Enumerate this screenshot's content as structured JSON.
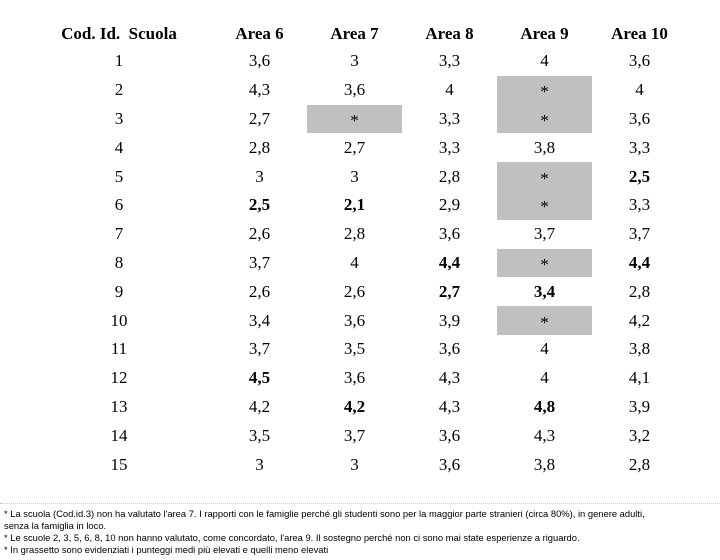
{
  "table": {
    "header": {
      "id_column": "Cod. Id.  Scuola",
      "area_columns": [
        "Area 6",
        "Area 7",
        "Area 8",
        "Area 9",
        "Area 10"
      ]
    },
    "not_evaluated_marker": "*",
    "rows": [
      {
        "id": "1",
        "cells": [
          {
            "v": "3,6"
          },
          {
            "v": "3"
          },
          {
            "v": "3,3"
          },
          {
            "v": "4"
          },
          {
            "v": "3,6"
          }
        ]
      },
      {
        "id": "2",
        "cells": [
          {
            "v": "4,3"
          },
          {
            "v": "3,6"
          },
          {
            "v": "4"
          },
          {
            "v": "*",
            "gray": true
          },
          {
            "v": "4"
          }
        ]
      },
      {
        "id": "3",
        "cells": [
          {
            "v": "2,7"
          },
          {
            "v": "*",
            "gray": true
          },
          {
            "v": "3,3"
          },
          {
            "v": "*",
            "gray": true
          },
          {
            "v": "3,6"
          }
        ]
      },
      {
        "id": "4",
        "cells": [
          {
            "v": "2,8"
          },
          {
            "v": "2,7"
          },
          {
            "v": "3,3"
          },
          {
            "v": "3,8"
          },
          {
            "v": "3,3"
          }
        ]
      },
      {
        "id": "5",
        "cells": [
          {
            "v": "3"
          },
          {
            "v": "3"
          },
          {
            "v": "2,8"
          },
          {
            "v": "*",
            "gray": true
          },
          {
            "v": "2,5",
            "bold": true
          }
        ]
      },
      {
        "id": "6",
        "cells": [
          {
            "v": "2,5",
            "bold": true
          },
          {
            "v": "2,1",
            "bold": true
          },
          {
            "v": "2,9"
          },
          {
            "v": "*",
            "gray": true
          },
          {
            "v": "3,3"
          }
        ]
      },
      {
        "id": "7",
        "cells": [
          {
            "v": "2,6"
          },
          {
            "v": "2,8"
          },
          {
            "v": "3,6"
          },
          {
            "v": "3,7"
          },
          {
            "v": "3,7"
          }
        ]
      },
      {
        "id": "8",
        "cells": [
          {
            "v": "3,7"
          },
          {
            "v": "4"
          },
          {
            "v": "4,4",
            "bold": true
          },
          {
            "v": "*",
            "gray": true
          },
          {
            "v": "4,4",
            "bold": true
          }
        ]
      },
      {
        "id": "9",
        "cells": [
          {
            "v": "2,6"
          },
          {
            "v": "2,6"
          },
          {
            "v": "2,7",
            "bold": true
          },
          {
            "v": "3,4",
            "bold": true
          },
          {
            "v": "2,8"
          }
        ]
      },
      {
        "id": "10",
        "cells": [
          {
            "v": "3,4"
          },
          {
            "v": "3,6"
          },
          {
            "v": "3,9"
          },
          {
            "v": "*",
            "gray": true
          },
          {
            "v": "4,2"
          }
        ]
      },
      {
        "id": "11",
        "cells": [
          {
            "v": "3,7"
          },
          {
            "v": "3,5"
          },
          {
            "v": "3,6"
          },
          {
            "v": "4"
          },
          {
            "v": "3,8"
          }
        ]
      },
      {
        "id": "12",
        "cells": [
          {
            "v": "4,5",
            "bold": true
          },
          {
            "v": "3,6"
          },
          {
            "v": "4,3"
          },
          {
            "v": "4"
          },
          {
            "v": "4,1"
          }
        ]
      },
      {
        "id": "13",
        "cells": [
          {
            "v": "4,2"
          },
          {
            "v": "4,2",
            "bold": true
          },
          {
            "v": "4,3"
          },
          {
            "v": "4,8",
            "bold": true
          },
          {
            "v": "3,9"
          }
        ]
      },
      {
        "id": "14",
        "cells": [
          {
            "v": "3,5"
          },
          {
            "v": "3,7"
          },
          {
            "v": "3,6"
          },
          {
            "v": "4,3"
          },
          {
            "v": "3,2"
          }
        ]
      },
      {
        "id": "15",
        "cells": [
          {
            "v": "3"
          },
          {
            "v": "3"
          },
          {
            "v": "3,6"
          },
          {
            "v": "3,8"
          },
          {
            "v": "2,8"
          }
        ]
      }
    ]
  },
  "footnotes": {
    "lines": [
      "* La scuola (Cod.id.3) non ha valutato l'area 7. I rapporti con le famiglie perché gli studenti sono per la maggior parte stranieri (circa 80%), in genere adulti,",
      "senza la famiglia in loco.",
      "* Le scuole 2, 3, 5, 6, 8, 10 non hanno valutato, come concordato, l'area 9. Il sostegno perché non ci sono mai state esperienze a riguardo.",
      "* In grassetto sono evidenziati i punteggi medi più elevati e quelli meno elevati"
    ]
  },
  "colors": {
    "not_evaluated_bg": "#c0c0c0",
    "text": "#000000"
  }
}
